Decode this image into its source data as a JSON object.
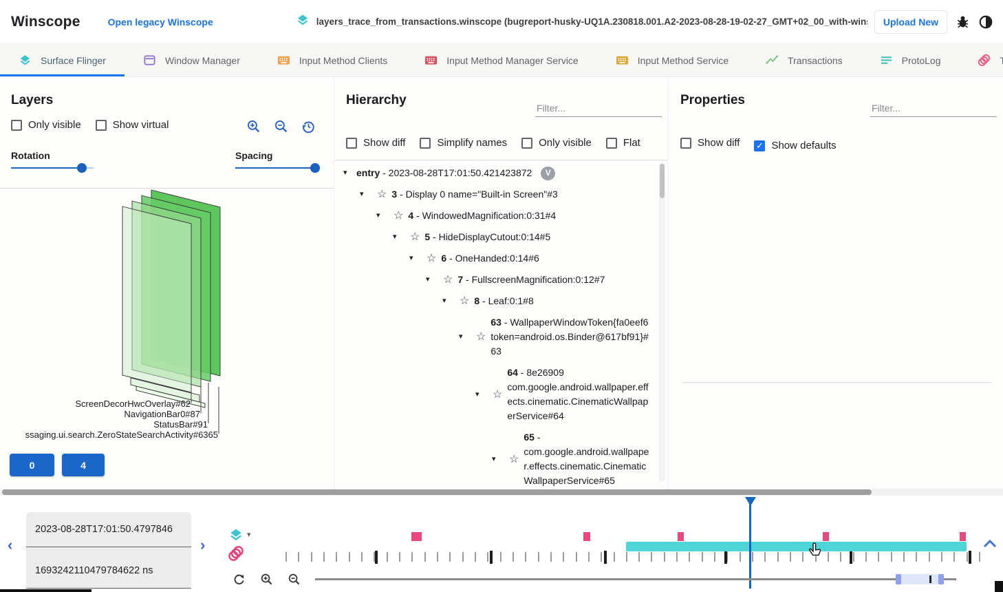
{
  "header": {
    "app_title": "Winscope",
    "legacy_link": "Open legacy Winscope",
    "file_label": "layers_trace_from_transactions.winscope (bugreport-husky-UQ1A.230818.001.A2-2023-08-28-19-02-27_GMT+02_00_with-winscope_REDACTED.zip)",
    "upload_button": "Upload New"
  },
  "tabs": [
    {
      "label": "Surface Flinger",
      "icon": "layers",
      "color": "#3ec3cf",
      "active": true
    },
    {
      "label": "Window Manager",
      "icon": "window",
      "color": "#9575cd",
      "active": false
    },
    {
      "label": "Input Method Clients",
      "icon": "keyboard",
      "color": "#efa14f",
      "active": false
    },
    {
      "label": "Input Method Manager Service",
      "icon": "keyboard",
      "color": "#d9535f",
      "active": false
    },
    {
      "label": "Input Method Service",
      "icon": "keyboard",
      "color": "#dca839",
      "active": false
    },
    {
      "label": "Transactions",
      "icon": "chart",
      "color": "#7cc47f",
      "active": false
    },
    {
      "label": "ProtoLog",
      "icon": "lines",
      "color": "#4cc4b8",
      "active": false
    },
    {
      "label": "Transitions",
      "icon": "circles",
      "color": "#ef5d8a",
      "active": false
    }
  ],
  "layers_panel": {
    "title": "Layers",
    "checkboxes": [
      {
        "label": "Only visible",
        "checked": false
      },
      {
        "label": "Show virtual",
        "checked": false
      }
    ],
    "sliders": [
      {
        "label": "Rotation",
        "value": 86
      },
      {
        "label": "Spacing",
        "value": 97
      }
    ],
    "canvas_labels": [
      "ScreenDecorHwcOverlay#62",
      "NavigationBar0#87",
      "StatusBar#91",
      "ssaging.ui.search.ZeroStateSearchActivity#6365"
    ],
    "buttons": [
      "0",
      "4"
    ]
  },
  "hierarchy_panel": {
    "title": "Hierarchy",
    "filter_placeholder": "Filter...",
    "checkboxes": [
      {
        "label": "Show diff",
        "checked": false
      },
      {
        "label": "Simplify names",
        "checked": false
      },
      {
        "label": "Only visible",
        "checked": false
      },
      {
        "label": "Flat",
        "checked": false
      }
    ],
    "tree": [
      {
        "level": 0,
        "num": "entry",
        "text": "2023-08-28T17:01:50.421423872",
        "badge": "V",
        "star": false
      },
      {
        "level": 1,
        "num": "3",
        "text": "Display 0 name=\"Built-in Screen\"#3",
        "star": true
      },
      {
        "level": 2,
        "num": "4",
        "text": "WindowedMagnification:0:31#4",
        "star": true
      },
      {
        "level": 3,
        "num": "5",
        "text": "HideDisplayCutout:0:14#5",
        "star": true
      },
      {
        "level": 4,
        "num": "6",
        "text": "OneHanded:0:14#6",
        "star": true
      },
      {
        "level": 5,
        "num": "7",
        "text": "FullscreenMagnification:0:12#7",
        "star": true
      },
      {
        "level": 6,
        "num": "8",
        "text": "Leaf:0:1#8",
        "star": true
      },
      {
        "level": 7,
        "num": "63",
        "text": "WallpaperWindowToken{fa0eef6 token=android.os.Binder@617bf91}#63",
        "star": true
      },
      {
        "level": 8,
        "num": "64",
        "text": "8e26909 com.google.android.wallpaper.effects.cinematic.CinematicWallpaperService#64",
        "star": true
      },
      {
        "level": 9,
        "num": "65",
        "text": "com.google.android.wallpaper.effects.cinematic.CinematicWallpaperService#65",
        "star": true
      }
    ]
  },
  "properties_panel": {
    "title": "Properties",
    "filter_placeholder": "Filter...",
    "checkboxes": [
      {
        "label": "Show diff",
        "checked": false
      },
      {
        "label": "Show defaults",
        "checked": true
      }
    ]
  },
  "timeline": {
    "timestamp_human": "2023-08-28T17:01:50.4797846",
    "timestamp_ns": "1693242110479784622 ns",
    "ruler": {
      "pink_markers": [
        {
          "pct": 18.6,
          "w": 15
        },
        {
          "pct": 43.1,
          "w": 10
        },
        {
          "pct": 56.5,
          "w": 9
        },
        {
          "pct": 77.1,
          "w": 9
        },
        {
          "pct": 96.6,
          "w": 9
        }
      ],
      "teal_band": {
        "start_pct": 49.1,
        "end_pct": 97.6
      },
      "cursor_pct": 66.7,
      "dark_ticks_pct": [
        13.4,
        29.7,
        46.0,
        63.1,
        80.9,
        97.8
      ]
    },
    "zoom_slider": {
      "track_start": 458,
      "track_end": 1390,
      "sel_start": 1302,
      "sel_end": 1372,
      "pos_tick": 1351
    }
  },
  "colors": {
    "accent_blue": "#1a73e8",
    "cursor_blue": "#1565c0",
    "teal": "#4ed5d9",
    "pink": "#e8487c",
    "button_blue": "#1b66c9"
  }
}
